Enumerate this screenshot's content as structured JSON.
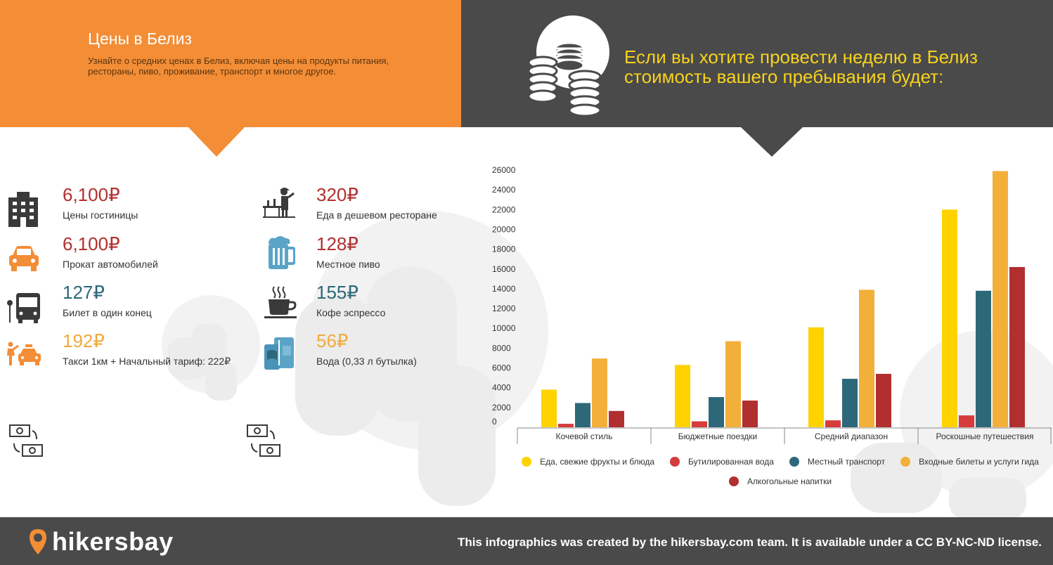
{
  "header": {
    "title": "Цены в Белиз",
    "subtitle": "Узнайте о средних ценах в Белиз, включая цены на продукты питания, рестораны, пиво, проживание, транспорт и многое другое.",
    "week_title": "Если вы хотите провести неделю в Белиз стоимость вашего пребывания будет:"
  },
  "prices": {
    "hotel": {
      "value": "6,100₽",
      "label": "Цены гостиницы",
      "icon": "hotel-icon"
    },
    "car": {
      "value": "6,100₽",
      "label": "Прокат автомобилей",
      "icon": "car-icon"
    },
    "bus": {
      "value": "127₽",
      "label": "Билет в один конец",
      "icon": "bus-icon"
    },
    "taxi": {
      "value": "192₽",
      "label": "Такси 1км + Начальный тариф: 222₽",
      "icon": "taxi-icon"
    },
    "restaurant": {
      "value": "320₽",
      "label": "Еда в дешевом ресторане",
      "icon": "restaurant-icon"
    },
    "beer": {
      "value": "128₽",
      "label": "Местное пиво",
      "icon": "beer-icon"
    },
    "coffee": {
      "value": "155₽",
      "label": "Кофе эспрессо",
      "icon": "coffee-icon"
    },
    "water": {
      "value": "56₽",
      "label": "Вода (0,33 л бутылка)",
      "icon": "water-icon"
    }
  },
  "colors": {
    "orange_header": "#f38d36",
    "dark_header": "#4a4a4a",
    "red": "#b22f2f",
    "teal": "#2d6879",
    "orange": "#f0aa3c"
  },
  "chart_data": {
    "type": "bar",
    "categories": [
      "Кочевой стиль",
      "Бюджетные поездки",
      "Средний диапазон",
      "Роскошные путешествия"
    ],
    "series": [
      {
        "name": "Еда, свежие фрукты и блюда",
        "color": "#ffd200",
        "values": [
          3800,
          6300,
          10100,
          22000
        ]
      },
      {
        "name": "Бутилированная вода",
        "color": "#d63c3c",
        "values": [
          350,
          600,
          700,
          1200
        ]
      },
      {
        "name": "Местный транспорт",
        "color": "#2d6879",
        "values": [
          2450,
          3050,
          4900,
          13800
        ]
      },
      {
        "name": "Входные билеты и услуги гида",
        "color": "#f2b03a",
        "values": [
          6950,
          8700,
          13900,
          25900
        ]
      },
      {
        "name": "Алкогольные напитки",
        "color": "#b22f2f",
        "values": [
          1650,
          2700,
          5400,
          16200
        ]
      }
    ],
    "y_ticks": [
      "26000",
      "24000",
      "22000",
      "20000",
      "18000",
      "16000",
      "14000",
      "12000",
      "10000",
      "8000",
      "6000",
      "4000",
      "2000",
      "0"
    ],
    "ylim": [
      0,
      26000
    ],
    "title": "",
    "xlabel": "",
    "ylabel": "",
    "grid": false,
    "legend_position": "bottom"
  },
  "footer": {
    "logo": "hikersbay",
    "credit": "This infographics was created by the hikersbay.com team. It is available under a CC BY-NC-ND license."
  }
}
